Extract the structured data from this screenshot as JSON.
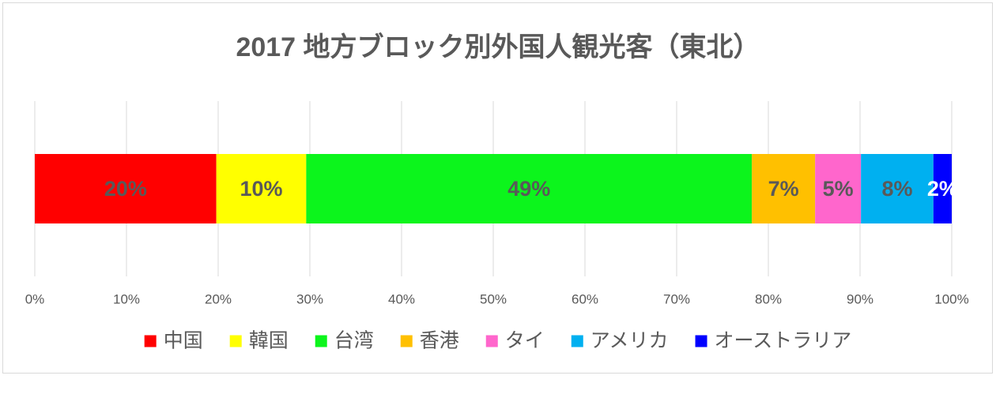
{
  "chart_data": {
    "type": "stacked_barh",
    "title": "2017 地方ブロック別外国人観光客（東北）",
    "categories": [
      null
    ],
    "series": [
      {
        "name": "中国",
        "color": "#ff0000",
        "values": [
          19.8
        ],
        "value_labels": [
          "20%"
        ],
        "label_color": "#595959"
      },
      {
        "name": "韓国",
        "color": "#ffff00",
        "values": [
          9.8
        ],
        "value_labels": [
          "10%"
        ],
        "label_color": "#595959"
      },
      {
        "name": "台湾",
        "color": "#0cf51c",
        "values": [
          48.6
        ],
        "value_labels": [
          "49%"
        ],
        "label_color": "#595959"
      },
      {
        "name": "香港",
        "color": "#ffc000",
        "values": [
          6.9
        ],
        "value_labels": [
          "7%"
        ],
        "label_color": "#595959"
      },
      {
        "name": "タイ",
        "color": "#ff66cc",
        "values": [
          5.0
        ],
        "value_labels": [
          "5%"
        ],
        "label_color": "#595959"
      },
      {
        "name": "アメリカ",
        "color": "#00b0f0",
        "values": [
          7.9
        ],
        "value_labels": [
          "8%"
        ],
        "label_color": "#595959"
      },
      {
        "name": "オーストラリア",
        "color": "#0000ff",
        "values": [
          2.0
        ],
        "value_labels": [
          "2%"
        ],
        "label_color": "#ffffff"
      }
    ],
    "xlim": [
      0,
      100
    ],
    "xticks": [
      {
        "value": 0,
        "label": "0%"
      },
      {
        "value": 10,
        "label": "10%"
      },
      {
        "value": 20,
        "label": "20%"
      },
      {
        "value": 30,
        "label": "30%"
      },
      {
        "value": 40,
        "label": "40%"
      },
      {
        "value": 50,
        "label": "50%"
      },
      {
        "value": 60,
        "label": "60%"
      },
      {
        "value": 70,
        "label": "70%"
      },
      {
        "value": 80,
        "label": "80%"
      },
      {
        "value": 90,
        "label": "90%"
      },
      {
        "value": 100,
        "label": "100%"
      }
    ],
    "grid": true,
    "legend": "bottom"
  }
}
